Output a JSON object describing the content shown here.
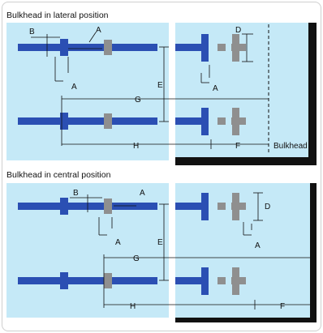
{
  "colors": {
    "water": "#c5e9f7",
    "water_right": "#c5e9f7",
    "pipe_blue": "#2b4fb3",
    "grey": "#8f8f8f",
    "wall": "#111111",
    "line": "#111111"
  },
  "top": {
    "heading": "Bulkhead in lateral position",
    "labels": {
      "a1": "A",
      "a2": "A",
      "a3": "A",
      "b": "B",
      "d": "D",
      "e": "E",
      "g": "G",
      "h": "H",
      "f": "F",
      "bulkhead": "Bulkhead"
    }
  },
  "bottom": {
    "heading": "Bulkhead in central position",
    "labels": {
      "a1": "A",
      "a2": "A",
      "a3": "A",
      "b": "B",
      "d": "D",
      "e": "E",
      "g": "G",
      "h": "H",
      "f": "F"
    }
  }
}
